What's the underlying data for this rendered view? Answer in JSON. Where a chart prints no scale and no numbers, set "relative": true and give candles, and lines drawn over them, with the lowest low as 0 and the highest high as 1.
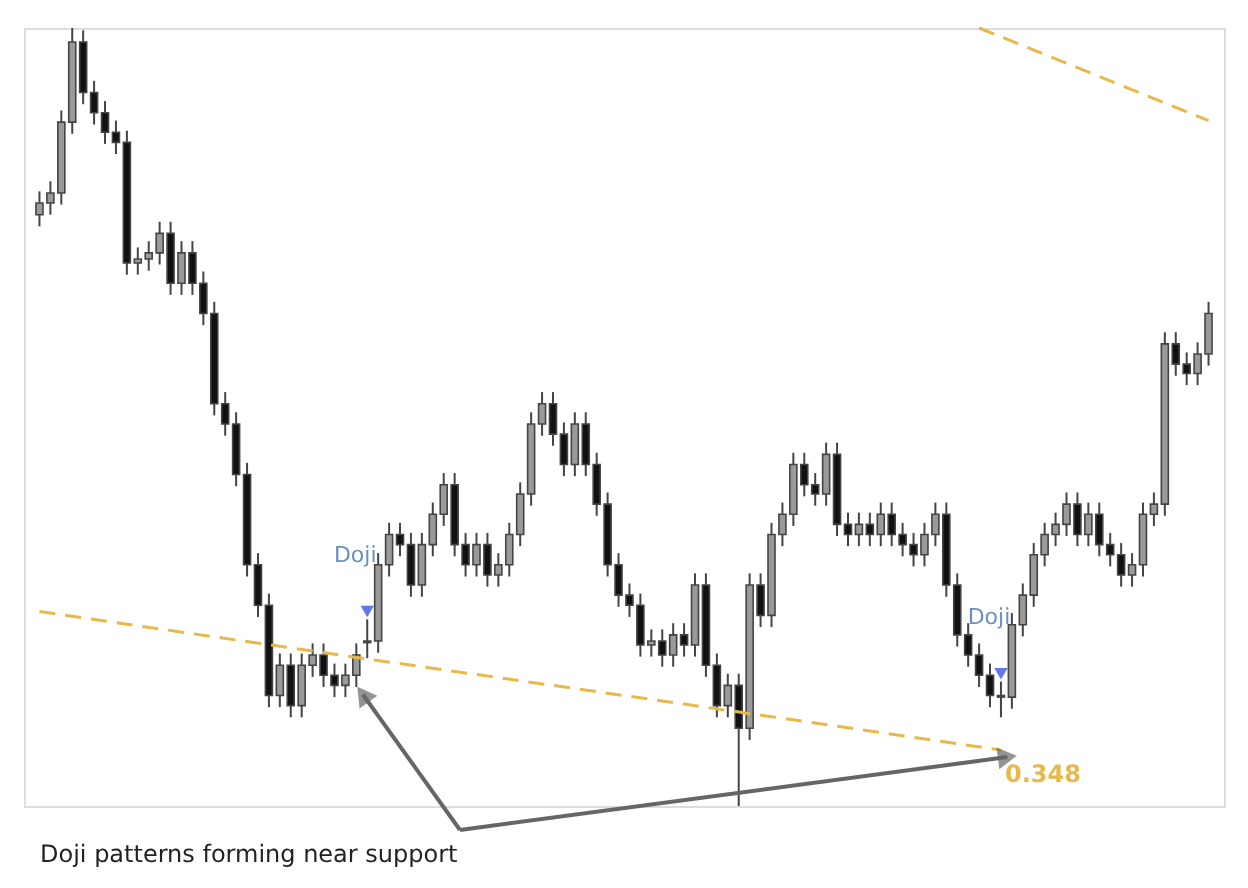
{
  "chart_data": {
    "type": "candlestick",
    "relative": true,
    "tick_labels": false,
    "legend": "bottom right",
    "categories": [
      null,
      null,
      null,
      null,
      null,
      null,
      null,
      null,
      null,
      null,
      null,
      null,
      null,
      null,
      null,
      null,
      null,
      null,
      null,
      null,
      null,
      null,
      null,
      null,
      null,
      null,
      null,
      null,
      null,
      null,
      null,
      null,
      null,
      null,
      null,
      null,
      null,
      null,
      null,
      null,
      null,
      null,
      null,
      null,
      null,
      null,
      null,
      null,
      null,
      null,
      null,
      null,
      null,
      null,
      null,
      null,
      null,
      null,
      null,
      null,
      null,
      null,
      null,
      null,
      null,
      null,
      null,
      null,
      null,
      null,
      null,
      null,
      null,
      null,
      null,
      null,
      null,
      null,
      null,
      null,
      null,
      null,
      null,
      null,
      null,
      null,
      null,
      null,
      null,
      null,
      null,
      null,
      null,
      null,
      null,
      null,
      null,
      null,
      null,
      null,
      null,
      null,
      null,
      null,
      null,
      null,
      null,
      null
    ],
    "ohlc": [
      [
        0.76,
        0.79,
        0.745,
        0.775
      ],
      [
        0.775,
        0.803,
        0.76,
        0.788
      ],
      [
        0.788,
        0.894,
        0.773,
        0.879
      ],
      [
        0.879,
        1,
        0.864,
        0.982
      ],
      [
        0.982,
        0.997,
        0.902,
        0.917
      ],
      [
        0.917,
        0.932,
        0.876,
        0.891
      ],
      [
        0.891,
        0.906,
        0.851,
        0.866
      ],
      [
        0.866,
        0.881,
        0.838,
        0.853
      ],
      [
        0.853,
        0.868,
        0.683,
        0.698
      ],
      [
        0.698,
        0.718,
        0.683,
        0.703
      ],
      [
        0.703,
        0.726,
        0.688,
        0.711
      ],
      [
        0.711,
        0.751,
        0.696,
        0.736
      ],
      [
        0.736,
        0.751,
        0.657,
        0.672
      ],
      [
        0.672,
        0.726,
        0.657,
        0.711
      ],
      [
        0.711,
        0.726,
        0.657,
        0.672
      ],
      [
        0.672,
        0.687,
        0.618,
        0.633
      ],
      [
        0.633,
        0.648,
        0.502,
        0.517
      ],
      [
        0.517,
        0.532,
        0.476,
        0.491
      ],
      [
        0.491,
        0.506,
        0.411,
        0.426
      ],
      [
        0.426,
        0.441,
        0.295,
        0.31
      ],
      [
        0.31,
        0.325,
        0.243,
        0.258
      ],
      [
        0.258,
        0.273,
        0.127,
        0.142
      ],
      [
        0.142,
        0.196,
        0.127,
        0.181
      ],
      [
        0.181,
        0.196,
        0.114,
        0.129
      ],
      [
        0.129,
        0.196,
        0.114,
        0.181
      ],
      [
        0.181,
        0.209,
        0.166,
        0.194
      ],
      [
        0.194,
        0.209,
        0.153,
        0.168
      ],
      [
        0.168,
        0.183,
        0.14,
        0.155
      ],
      [
        0.155,
        0.183,
        0.14,
        0.168
      ],
      [
        0.168,
        0.209,
        0.153,
        0.194
      ],
      [
        0.21,
        0.24,
        0.19,
        0.212
      ],
      [
        0.212,
        0.325,
        0.197,
        0.31
      ],
      [
        0.31,
        0.364,
        0.295,
        0.349
      ],
      [
        0.349,
        0.364,
        0.321,
        0.336
      ],
      [
        0.336,
        0.351,
        0.269,
        0.284
      ],
      [
        0.284,
        0.351,
        0.269,
        0.336
      ],
      [
        0.336,
        0.39,
        0.321,
        0.375
      ],
      [
        0.375,
        0.428,
        0.36,
        0.413
      ],
      [
        0.413,
        0.428,
        0.321,
        0.336
      ],
      [
        0.336,
        0.351,
        0.295,
        0.31
      ],
      [
        0.31,
        0.351,
        0.295,
        0.336
      ],
      [
        0.336,
        0.351,
        0.282,
        0.297
      ],
      [
        0.297,
        0.325,
        0.282,
        0.31
      ],
      [
        0.31,
        0.364,
        0.295,
        0.349
      ],
      [
        0.349,
        0.416,
        0.334,
        0.401
      ],
      [
        0.401,
        0.506,
        0.386,
        0.491
      ],
      [
        0.491,
        0.532,
        0.476,
        0.517
      ],
      [
        0.517,
        0.532,
        0.463,
        0.478
      ],
      [
        0.478,
        0.493,
        0.424,
        0.439
      ],
      [
        0.439,
        0.506,
        0.424,
        0.491
      ],
      [
        0.491,
        0.506,
        0.424,
        0.439
      ],
      [
        0.439,
        0.454,
        0.373,
        0.388
      ],
      [
        0.388,
        0.403,
        0.295,
        0.31
      ],
      [
        0.31,
        0.325,
        0.256,
        0.271
      ],
      [
        0.271,
        0.286,
        0.243,
        0.258
      ],
      [
        0.258,
        0.273,
        0.192,
        0.207
      ],
      [
        0.207,
        0.227,
        0.192,
        0.212
      ],
      [
        0.212,
        0.227,
        0.179,
        0.194
      ],
      [
        0.194,
        0.235,
        0.179,
        0.22
      ],
      [
        0.22,
        0.235,
        0.192,
        0.207
      ],
      [
        0.207,
        0.299,
        0.192,
        0.284
      ],
      [
        0.284,
        0.299,
        0.166,
        0.181
      ],
      [
        0.181,
        0.196,
        0.114,
        0.129
      ],
      [
        0.129,
        0.17,
        0.114,
        0.155
      ],
      [
        0.155,
        0.17,
        0,
        0.1
      ],
      [
        0.1,
        0.299,
        0.085,
        0.284
      ],
      [
        0.284,
        0.299,
        0.23,
        0.245
      ],
      [
        0.245,
        0.364,
        0.23,
        0.349
      ],
      [
        0.349,
        0.39,
        0.334,
        0.375
      ],
      [
        0.375,
        0.454,
        0.36,
        0.439
      ],
      [
        0.439,
        0.454,
        0.398,
        0.413
      ],
      [
        0.413,
        0.428,
        0.386,
        0.401
      ],
      [
        0.401,
        0.467,
        0.386,
        0.452
      ],
      [
        0.452,
        0.467,
        0.347,
        0.362
      ],
      [
        0.362,
        0.377,
        0.334,
        0.349
      ],
      [
        0.349,
        0.377,
        0.334,
        0.362
      ],
      [
        0.362,
        0.377,
        0.334,
        0.349
      ],
      [
        0.349,
        0.39,
        0.334,
        0.375
      ],
      [
        0.375,
        0.39,
        0.334,
        0.349
      ],
      [
        0.349,
        0.364,
        0.321,
        0.336
      ],
      [
        0.336,
        0.351,
        0.308,
        0.323
      ],
      [
        0.323,
        0.364,
        0.308,
        0.349
      ],
      [
        0.349,
        0.39,
        0.334,
        0.375
      ],
      [
        0.375,
        0.39,
        0.269,
        0.284
      ],
      [
        0.284,
        0.299,
        0.205,
        0.22
      ],
      [
        0.22,
        0.235,
        0.179,
        0.194
      ],
      [
        0.194,
        0.209,
        0.153,
        0.168
      ],
      [
        0.168,
        0.183,
        0.127,
        0.142
      ],
      [
        0.142,
        0.16,
        0.114,
        0.14
      ],
      [
        0.14,
        0.248,
        0.125,
        0.233
      ],
      [
        0.233,
        0.286,
        0.218,
        0.271
      ],
      [
        0.271,
        0.338,
        0.256,
        0.323
      ],
      [
        0.323,
        0.364,
        0.308,
        0.349
      ],
      [
        0.349,
        0.377,
        0.334,
        0.362
      ],
      [
        0.362,
        0.403,
        0.347,
        0.388
      ],
      [
        0.388,
        0.403,
        0.334,
        0.349
      ],
      [
        0.349,
        0.39,
        0.334,
        0.375
      ],
      [
        0.375,
        0.39,
        0.321,
        0.336
      ],
      [
        0.336,
        0.351,
        0.308,
        0.323
      ],
      [
        0.323,
        0.338,
        0.282,
        0.297
      ],
      [
        0.297,
        0.325,
        0.282,
        0.31
      ],
      [
        0.31,
        0.39,
        0.295,
        0.375
      ],
      [
        0.375,
        0.403,
        0.36,
        0.388
      ],
      [
        0.388,
        0.609,
        0.373,
        0.594
      ],
      [
        0.594,
        0.609,
        0.553,
        0.568
      ],
      [
        0.568,
        0.583,
        0.541,
        0.556
      ],
      [
        0.556,
        0.596,
        0.541,
        0.581
      ],
      [
        0.581,
        0.648,
        0.566,
        0.633
      ]
    ],
    "series": [
      {
        "type": "line",
        "name": "0.348",
        "color": "#e8b84a",
        "line_style": "dashed",
        "values": [
          0.25,
          null,
          null,
          null,
          null,
          null,
          null,
          null,
          null,
          null,
          null,
          null,
          null,
          null,
          null,
          null,
          null,
          null,
          null,
          null,
          null,
          null,
          null,
          null,
          null,
          null,
          null,
          null,
          null,
          0.191,
          null,
          null,
          null,
          null,
          null,
          null,
          null,
          null,
          null,
          null,
          null,
          null,
          null,
          null,
          null,
          null,
          null,
          null,
          null,
          null,
          null,
          null,
          null,
          null,
          null,
          null,
          null,
          null,
          null,
          0.131,
          null,
          null,
          null,
          null,
          null,
          null,
          null,
          null,
          null,
          null,
          null,
          null,
          null,
          null,
          null,
          null,
          null,
          null,
          null,
          null,
          null,
          null,
          null,
          null,
          null,
          null,
          null,
          null,
          0.072,
          null,
          null,
          null,
          null,
          null,
          null,
          null,
          null,
          null,
          null,
          null,
          null,
          null,
          null,
          null,
          null,
          null,
          null,
          null
        ]
      },
      {
        "type": "line",
        "color": "#e8b84a",
        "line_style": "dashed",
        "values": [
          null,
          null,
          null,
          null,
          null,
          null,
          null,
          null,
          null,
          null,
          null,
          null,
          null,
          null,
          null,
          null,
          null,
          null,
          null,
          null,
          null,
          null,
          null,
          null,
          null,
          null,
          null,
          null,
          null,
          null,
          null,
          null,
          null,
          null,
          null,
          null,
          null,
          null,
          null,
          null,
          null,
          null,
          null,
          null,
          null,
          null,
          null,
          null,
          null,
          null,
          null,
          null,
          null,
          null,
          null,
          null,
          null,
          null,
          null,
          null,
          null,
          null,
          null,
          null,
          null,
          null,
          null,
          null,
          null,
          null,
          null,
          null,
          null,
          null,
          null,
          null,
          null,
          null,
          null,
          null,
          null,
          null,
          null,
          null,
          null,
          null,
          1,
          null,
          null,
          null,
          null,
          null,
          null,
          null,
          null,
          null,
          null,
          null,
          null,
          null,
          null,
          null,
          null,
          null,
          null,
          null,
          null,
          0.881
        ]
      },
      {
        "type": "scatter",
        "color": "#1f3fe0",
        "marker": "triangle",
        "values": [
          null,
          null,
          null,
          null,
          null,
          null,
          null,
          null,
          null,
          null,
          null,
          null,
          null,
          null,
          null,
          null,
          null,
          null,
          null,
          null,
          null,
          null,
          null,
          null,
          null,
          null,
          null,
          null,
          null,
          null,
          0.25,
          null,
          null,
          null,
          null,
          null,
          null,
          null,
          null,
          null,
          null,
          null,
          null,
          null,
          null,
          null,
          null,
          null,
          null,
          null,
          null,
          null,
          null,
          null,
          null,
          null,
          null,
          null,
          null,
          null,
          null,
          null,
          null,
          null,
          null,
          null,
          null,
          null,
          null,
          null,
          null,
          null,
          null,
          null,
          null,
          null,
          null,
          null,
          null,
          null,
          null,
          null,
          null,
          null,
          null,
          null,
          null,
          null,
          0.17,
          null,
          null,
          null,
          null,
          null,
          null,
          null,
          null,
          null,
          null,
          null,
          null,
          null,
          null,
          null,
          null,
          null,
          null,
          null
        ]
      }
    ],
    "annotations": [
      "Doji",
      "Doji",
      "Doji patterns forming near support"
    ]
  }
}
